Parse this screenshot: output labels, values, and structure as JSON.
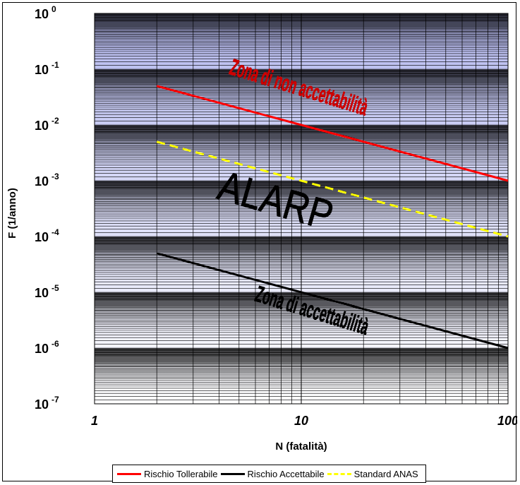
{
  "chart_data": {
    "type": "line",
    "x_scale": "log",
    "y_scale": "log",
    "xlim": [
      1,
      100
    ],
    "ylim": [
      1e-07,
      1
    ],
    "xlabel": "N (fatalità)",
    "ylabel": "F (1/anno)",
    "x_ticks": [
      {
        "value": 1,
        "label": "1"
      },
      {
        "value": 10,
        "label": "10"
      },
      {
        "value": 100,
        "label": "100"
      }
    ],
    "y_ticks": [
      {
        "value": 1,
        "base": "10",
        "exp": "0"
      },
      {
        "value": 0.1,
        "base": "10",
        "exp": "-1"
      },
      {
        "value": 0.01,
        "base": "10",
        "exp": "-2"
      },
      {
        "value": 0.001,
        "base": "10",
        "exp": "-3"
      },
      {
        "value": 0.0001,
        "base": "10",
        "exp": "-4"
      },
      {
        "value": 1e-05,
        "base": "10",
        "exp": "-5"
      },
      {
        "value": 1e-06,
        "base": "10",
        "exp": "-6"
      },
      {
        "value": 1e-07,
        "base": "10",
        "exp": "-7"
      }
    ],
    "series": [
      {
        "name": "Rischio Tollerabile",
        "color": "#ff0000",
        "dash": "solid",
        "x": [
          2,
          100
        ],
        "y": [
          0.05,
          0.001
        ]
      },
      {
        "name": "Rischio Accettabile",
        "color": "#000000",
        "dash": "solid",
        "x": [
          2,
          100
        ],
        "y": [
          5e-05,
          1e-06
        ]
      },
      {
        "name": "Standard ANAS",
        "color": "#ffff00",
        "dash": "dashed",
        "x": [
          2,
          100
        ],
        "y": [
          0.005,
          0.0001
        ]
      }
    ],
    "annotations": [
      {
        "text": "Zona di non accettabilità",
        "color": "#cc0000",
        "x": 9.5,
        "y": 0.035
      },
      {
        "text": "ALARP",
        "color": "#000000",
        "x": 7.2,
        "y": 0.00025
      },
      {
        "text": "Zona di accettabilità",
        "color": "#000000",
        "x": 11,
        "y": 3.5e-06
      }
    ],
    "grid": true,
    "legend_position": "bottom",
    "background_gradient": [
      "#b4b8ee",
      "#ffffff"
    ]
  }
}
